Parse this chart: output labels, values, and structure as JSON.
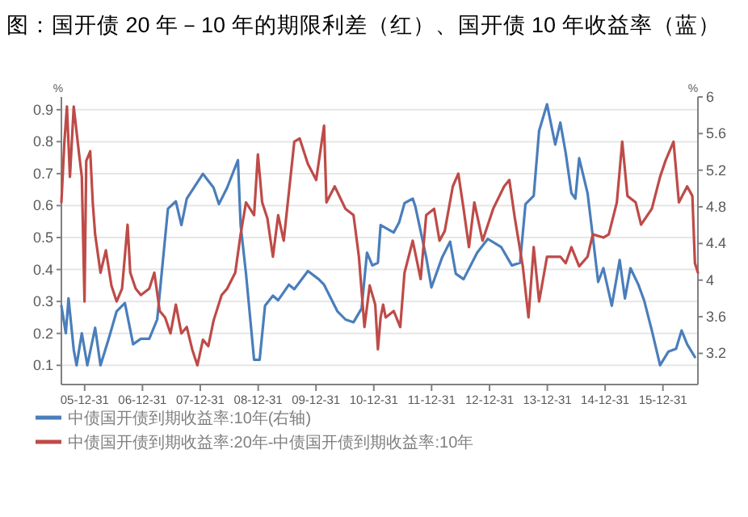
{
  "chart_data": {
    "type": "line",
    "title": "图：国开债 20 年－10 年的期限利差（红）、国开债 10 年收益率（蓝）",
    "ylabel": "%",
    "y2label": "%",
    "xlim": [
      "2005-08-06",
      "2016-08-08"
    ],
    "xticks": [
      {
        "value": "2005-12-31",
        "label": "05-12-31"
      },
      {
        "value": "2006-12-31",
        "label": "06-12-31"
      },
      {
        "value": "2007-12-31",
        "label": "07-12-31"
      },
      {
        "value": "2008-12-31",
        "label": "08-12-31"
      },
      {
        "value": "2009-12-31",
        "label": "09-12-31"
      },
      {
        "value": "2010-12-31",
        "label": "10-12-31"
      },
      {
        "value": "2011-12-31",
        "label": "11-12-31"
      },
      {
        "value": "2012-12-31",
        "label": "12-12-31"
      },
      {
        "value": "2013-12-31",
        "label": "13-12-31"
      },
      {
        "value": "2014-12-31",
        "label": "14-12-31"
      },
      {
        "value": "2015-12-31",
        "label": "15-12-31"
      }
    ],
    "ylim": [
      0.04,
      0.94
    ],
    "yticks": [
      0.1,
      0.2,
      0.3,
      0.4,
      0.5,
      0.6,
      0.7,
      0.8,
      0.9
    ],
    "y2lim": [
      2.86,
      6.0
    ],
    "y2ticks": [
      3.2,
      3.6,
      4.0,
      4.4,
      4.8,
      5.2,
      5.6,
      6.0
    ],
    "grid": "y",
    "legend": "bottom",
    "series": [
      {
        "name": "中债国开债到期收益率:10年(右轴)",
        "color": "#4a7ebb",
        "axis": "y2",
        "x": [
          "2005-08-06",
          "2005-09-03",
          "2005-09-20",
          "2005-10-23",
          "2005-11-10",
          "2005-12-13",
          "2006-01-17",
          "2006-03-07",
          "2006-04-10",
          "2006-06-01",
          "2006-07-21",
          "2006-09-11",
          "2006-11-02",
          "2006-12-21",
          "2007-02-12",
          "2007-04-03",
          "2007-06-10",
          "2007-07-30",
          "2007-09-03",
          "2007-10-07",
          "2008-01-17",
          "2008-03-24",
          "2008-04-27",
          "2008-06-18",
          "2008-08-25",
          "2008-09-11",
          "2008-10-15",
          "2008-12-05",
          "2009-01-09",
          "2009-02-12",
          "2009-04-03",
          "2009-05-06",
          "2009-07-13",
          "2009-08-16",
          "2009-11-10",
          "2010-01-17",
          "2010-02-20",
          "2010-05-15",
          "2010-07-05",
          "2010-08-25",
          "2010-10-15",
          "2010-11-18",
          "2010-12-22",
          "2011-01-26",
          "2011-02-12",
          "2011-05-06",
          "2011-06-09",
          "2011-07-13",
          "2011-09-03",
          "2011-09-20",
          "2011-11-27",
          "2011-12-30",
          "2012-03-07",
          "2012-04-26",
          "2012-06-01",
          "2012-07-20",
          "2012-10-14",
          "2012-12-20",
          "2013-03-15",
          "2013-05-21",
          "2013-07-12",
          "2013-08-15",
          "2013-10-06",
          "2013-11-09",
          "2013-12-29",
          "2014-02-19",
          "2014-03-23",
          "2014-04-26",
          "2014-06-01",
          "2014-06-26",
          "2014-07-20",
          "2014-09-11",
          "2014-10-14",
          "2014-11-17",
          "2014-12-20",
          "2015-02-11",
          "2015-04-02",
          "2015-05-05",
          "2015-06-09",
          "2015-07-29",
          "2015-09-03",
          "2015-10-22",
          "2015-12-13",
          "2016-02-04",
          "2016-03-23",
          "2016-04-27",
          "2016-06-01",
          "2016-07-20"
        ],
        "values": [
          3.72,
          3.42,
          3.8,
          3.24,
          3.07,
          3.42,
          3.07,
          3.48,
          3.07,
          3.36,
          3.66,
          3.75,
          3.3,
          3.36,
          3.36,
          3.57,
          4.78,
          4.86,
          4.6,
          4.89,
          5.16,
          5.01,
          4.83,
          5.01,
          5.31,
          4.6,
          4.07,
          3.13,
          3.13,
          3.72,
          3.83,
          3.78,
          3.95,
          3.9,
          4.1,
          4.01,
          3.95,
          3.66,
          3.57,
          3.54,
          3.69,
          4.3,
          4.16,
          4.19,
          4.6,
          4.52,
          4.63,
          4.84,
          4.89,
          4.8,
          4.25,
          3.92,
          4.25,
          4.42,
          4.07,
          4.01,
          4.3,
          4.45,
          4.36,
          4.16,
          4.19,
          4.83,
          4.92,
          5.63,
          5.92,
          5.48,
          5.72,
          5.39,
          4.95,
          4.89,
          5.33,
          4.95,
          4.48,
          3.98,
          4.13,
          3.72,
          4.22,
          3.8,
          4.13,
          3.95,
          3.78,
          3.45,
          3.07,
          3.22,
          3.25,
          3.45,
          3.3,
          3.16
        ]
      },
      {
        "name": "中债国开债到期收益率:20年-中债国开债到期收益率:10年",
        "color": "#be4b48",
        "axis": "y",
        "x": [
          "2005-08-06",
          "2005-08-25",
          "2005-09-10",
          "2005-09-29",
          "2005-10-23",
          "2005-11-26",
          "2005-12-13",
          "2005-12-30",
          "2006-01-10",
          "2006-02-04",
          "2006-02-20",
          "2006-03-07",
          "2006-04-10",
          "2006-05-14",
          "2006-06-18",
          "2006-07-21",
          "2006-08-24",
          "2006-09-28",
          "2006-10-15",
          "2006-11-18",
          "2006-12-21",
          "2007-02-12",
          "2007-03-16",
          "2007-04-19",
          "2007-05-23",
          "2007-06-26",
          "2007-07-30",
          "2007-09-03",
          "2007-10-07",
          "2007-11-10",
          "2007-12-13",
          "2008-01-17",
          "2008-02-20",
          "2008-03-24",
          "2008-05-14",
          "2008-06-18",
          "2008-08-08",
          "2008-09-11",
          "2008-10-15",
          "2008-12-05",
          "2008-12-29",
          "2009-01-25",
          "2009-02-27",
          "2009-04-03",
          "2009-05-06",
          "2009-06-10",
          "2009-08-16",
          "2009-09-19",
          "2009-11-10",
          "2010-01-01",
          "2010-02-20",
          "2010-03-07",
          "2010-04-28",
          "2010-07-05",
          "2010-08-25",
          "2010-09-28",
          "2010-11-02",
          "2010-12-05",
          "2011-01-09",
          "2011-01-26",
          "2011-02-12",
          "2011-02-28",
          "2011-03-16",
          "2011-05-06",
          "2011-06-16",
          "2011-07-13",
          "2011-09-03",
          "2011-10-23",
          "2011-11-27",
          "2012-01-16",
          "2012-02-19",
          "2012-03-23",
          "2012-05-13",
          "2012-06-17",
          "2012-07-20",
          "2012-08-23",
          "2012-09-26",
          "2012-11-17",
          "2013-01-23",
          "2013-04-02",
          "2013-05-05",
          "2013-06-09",
          "2013-07-29",
          "2013-09-03",
          "2013-10-06",
          "2013-11-09",
          "2013-12-29",
          "2014-03-23",
          "2014-04-26",
          "2014-06-01",
          "2014-07-20",
          "2014-09-11",
          "2014-10-14",
          "2014-12-20",
          "2015-01-23",
          "2015-03-15",
          "2015-04-18",
          "2015-05-21",
          "2015-07-12",
          "2015-08-15",
          "2015-10-22",
          "2015-12-13",
          "2016-01-16",
          "2016-03-07",
          "2016-04-10",
          "2016-06-01",
          "2016-07-04",
          "2016-07-20",
          "2016-08-08"
        ],
        "values": [
          0.61,
          0.8,
          0.91,
          0.69,
          0.91,
          0.76,
          0.69,
          0.3,
          0.74,
          0.77,
          0.61,
          0.51,
          0.39,
          0.46,
          0.35,
          0.3,
          0.34,
          0.54,
          0.39,
          0.34,
          0.32,
          0.34,
          0.39,
          0.27,
          0.25,
          0.2,
          0.29,
          0.2,
          0.22,
          0.15,
          0.1,
          0.18,
          0.16,
          0.24,
          0.32,
          0.34,
          0.39,
          0.51,
          0.61,
          0.57,
          0.76,
          0.61,
          0.56,
          0.44,
          0.57,
          0.49,
          0.8,
          0.81,
          0.73,
          0.68,
          0.85,
          0.61,
          0.66,
          0.59,
          0.57,
          0.44,
          0.22,
          0.35,
          0.29,
          0.15,
          0.25,
          0.29,
          0.25,
          0.27,
          0.22,
          0.39,
          0.49,
          0.37,
          0.57,
          0.59,
          0.49,
          0.52,
          0.66,
          0.7,
          0.59,
          0.47,
          0.61,
          0.49,
          0.59,
          0.66,
          0.68,
          0.56,
          0.41,
          0.25,
          0.47,
          0.3,
          0.44,
          0.44,
          0.42,
          0.47,
          0.41,
          0.44,
          0.51,
          0.5,
          0.51,
          0.61,
          0.8,
          0.63,
          0.61,
          0.54,
          0.59,
          0.69,
          0.74,
          0.8,
          0.61,
          0.66,
          0.63,
          0.42,
          0.39
        ]
      }
    ]
  }
}
